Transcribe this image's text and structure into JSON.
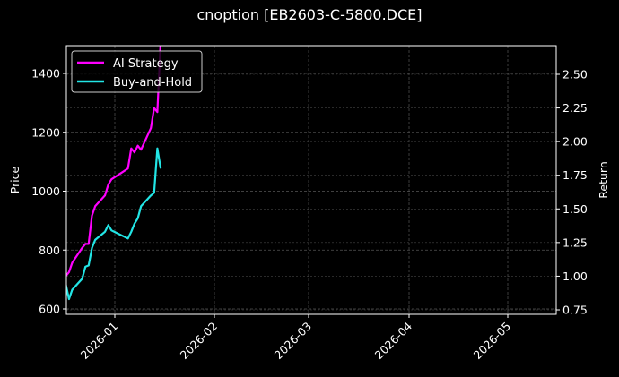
{
  "title": "cnoption [EB2603-C-5800.DCE]",
  "chart_data": {
    "type": "line",
    "title": "cnoption [EB2603-C-5800.DCE]",
    "xlabel": "",
    "ylabel_left": "Price",
    "ylabel_right": "Return",
    "x_ticks": [
      "2026-01",
      "2026-02",
      "2026-03",
      "2026-04",
      "2026-05"
    ],
    "y_left_ticks": [
      600,
      800,
      1000,
      1200,
      1400
    ],
    "y_right_ticks": [
      0.75,
      1.0,
      1.25,
      1.5,
      1.75,
      2.0,
      2.25,
      2.5
    ],
    "y_left_range": [
      580,
      1490
    ],
    "y_right_range": [
      0.73,
      2.7
    ],
    "grid": true,
    "legend_position": "upper left",
    "x": [
      "2025-12-17",
      "2025-12-18",
      "2025-12-19",
      "2025-12-22",
      "2025-12-23",
      "2025-12-24",
      "2025-12-25",
      "2025-12-26",
      "2025-12-29",
      "2025-12-30",
      "2025-12-31",
      "2026-01-05",
      "2026-01-06",
      "2026-01-07",
      "2026-01-08",
      "2026-01-09",
      "2026-01-12",
      "2026-01-13",
      "2026-01-14",
      "2026-01-15"
    ],
    "series": [
      {
        "name": "AI Strategy",
        "color": "#ff00ff",
        "axis": "right",
        "values": [
          1.0,
          1.03,
          1.1,
          1.21,
          1.24,
          1.24,
          1.45,
          1.52,
          1.6,
          1.68,
          1.72,
          1.8,
          1.95,
          1.92,
          1.97,
          1.94,
          2.1,
          2.25,
          2.22,
          2.75
        ]
      },
      {
        "name": "Buy-and-Hold",
        "color": "#22e5e5",
        "axis": "right",
        "values": [
          0.94,
          0.83,
          0.9,
          0.98,
          1.07,
          1.08,
          1.21,
          1.27,
          1.33,
          1.38,
          1.34,
          1.28,
          1.33,
          1.39,
          1.43,
          1.52,
          1.6,
          1.62,
          1.95,
          1.8
        ]
      }
    ]
  },
  "legend": {
    "items": [
      {
        "label": "AI Strategy",
        "color": "#ff00ff"
      },
      {
        "label": "Buy-and-Hold",
        "color": "#22e5e5"
      }
    ]
  }
}
